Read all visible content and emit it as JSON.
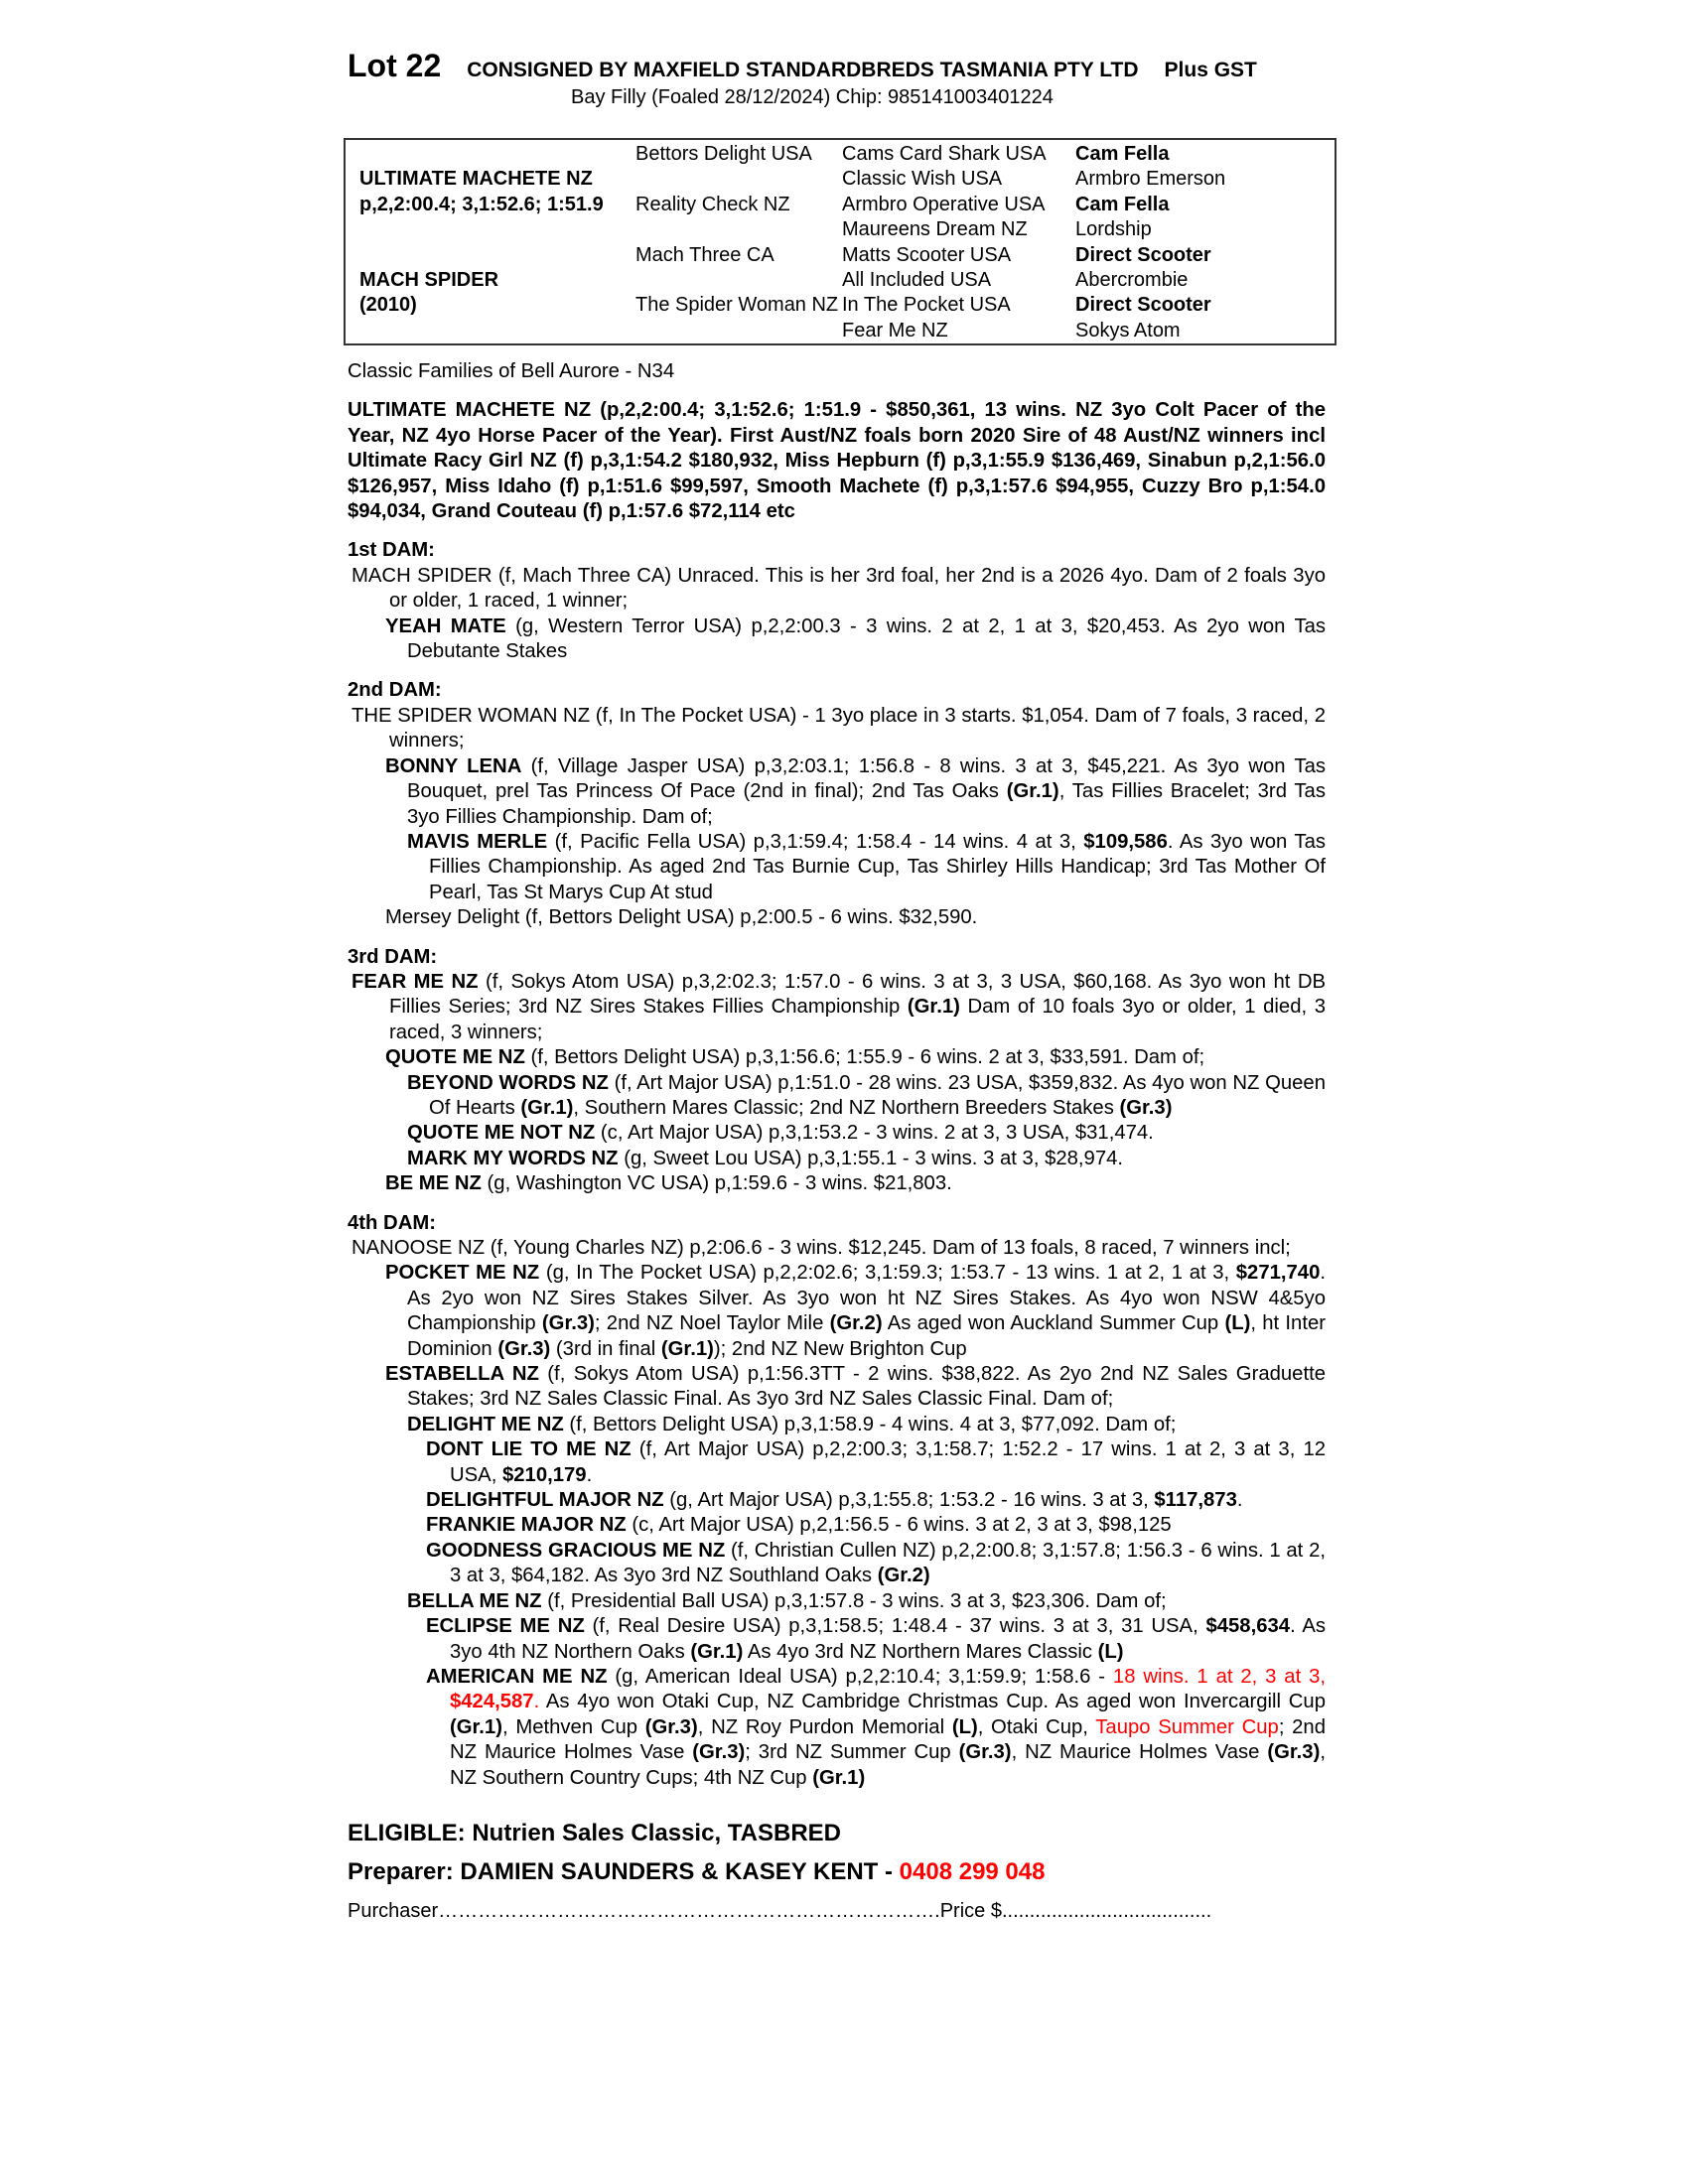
{
  "header": {
    "lot": "Lot 22",
    "consignor": "CONSIGNED BY MAXFIELD STANDARDBREDS TASMANIA PTY LTD",
    "gst": "Plus GST",
    "subtitle": "Bay Filly (Foaled 28/12/2024) Chip: 985141003401224"
  },
  "pedigree": {
    "col1": [
      {
        "row": 1,
        "t": "ULTIMATE MACHETE NZ",
        "b": true
      },
      {
        "row": 2,
        "t": "p,2,2:00.4; 3,1:52.6; 1:51.9",
        "b": true
      },
      {
        "row": 5,
        "t": "MACH SPIDER",
        "b": true
      },
      {
        "row": 6,
        "t": "(2010)",
        "b": true
      }
    ],
    "col2": [
      {
        "row": 0,
        "t": "Bettors Delight USA"
      },
      {
        "row": 2,
        "t": "Reality Check NZ"
      },
      {
        "row": 4,
        "t": "Mach Three CA"
      },
      {
        "row": 6,
        "t": "The Spider Woman NZ"
      }
    ],
    "col3": [
      {
        "row": 0,
        "t": "Cams Card Shark USA"
      },
      {
        "row": 1,
        "t": "Classic Wish USA"
      },
      {
        "row": 2,
        "t": "Armbro Operative USA"
      },
      {
        "row": 3,
        "t": "Maureens Dream NZ"
      },
      {
        "row": 4,
        "t": "Matts Scooter USA"
      },
      {
        "row": 5,
        "t": "All Included USA"
      },
      {
        "row": 6,
        "t": "In The Pocket USA"
      },
      {
        "row": 7,
        "t": "Fear Me NZ"
      }
    ],
    "col4": [
      {
        "row": 0,
        "t": "Cam Fella",
        "b": true
      },
      {
        "row": 1,
        "t": "Armbro Emerson"
      },
      {
        "row": 2,
        "t": "Cam Fella",
        "b": true
      },
      {
        "row": 3,
        "t": "Lordship"
      },
      {
        "row": 4,
        "t": "Direct Scooter",
        "b": true
      },
      {
        "row": 5,
        "t": "Abercrombie"
      },
      {
        "row": 6,
        "t": "Direct Scooter",
        "b": true
      },
      {
        "row": 7,
        "t": "Sokys Atom"
      }
    ]
  },
  "family": "Classic Families of Bell Aurore - N34",
  "sire": [
    {
      "t": "ULTIMATE MACHETE NZ (p,2,2:00.4; 3,1:52.6; 1:51.9 - $850,361, 13 wins. NZ 3yo Colt Pacer of the Year, NZ 4yo Horse Pacer of the Year). First Aust/NZ foals born 2020 Sire of 48 Aust/NZ winners incl Ultimate Racy Girl NZ (f) p,3,1:54.2 $180,932, Miss Hepburn (f) p,3,1:55.9 $136,469, Sinabun p,2,1:56.0 $126,957, Miss Idaho (f) p,1:51.6 $99,597, Smooth Machete (f) p,3,1:57.6 $94,955, Cuzzy Bro p,1:54.0 $94,034, Grand Couteau (f) p,1:57.6 $72,114 etc",
      "b": true
    }
  ],
  "sections": [
    {
      "title": "1st DAM:",
      "entries": [
        {
          "level": 0,
          "segs": [
            {
              "t": "MACH SPIDER (f, Mach Three CA) Unraced. This is her 3rd foal, her 2nd is a 2026 4yo. Dam of 2 foals 3yo or older, 1 raced, 1 winner;"
            }
          ]
        },
        {
          "level": 1,
          "segs": [
            {
              "t": "YEAH MATE",
              "b": true
            },
            {
              "t": " (g, Western Terror USA) p,2,2:00.3 - 3 wins. 2 at 2, 1 at 3, $20,453. As 2yo won Tas Debutante Stakes"
            }
          ]
        }
      ]
    },
    {
      "title": "2nd DAM:",
      "entries": [
        {
          "level": 0,
          "segs": [
            {
              "t": "THE SPIDER WOMAN NZ (f, In The Pocket USA) - 1 3yo place in 3 starts. $1,054. Dam of 7 foals, 3 raced, 2 winners;"
            }
          ]
        },
        {
          "level": 1,
          "segs": [
            {
              "t": "BONNY LENA",
              "b": true
            },
            {
              "t": " (f, Village Jasper USA) p,3,2:03.1; 1:56.8 - 8 wins. 3 at 3, $45,221. As 3yo won Tas Bouquet, prel Tas Princess Of Pace (2nd in final); 2nd Tas Oaks "
            },
            {
              "t": "(Gr.1)",
              "b": true
            },
            {
              "t": ", Tas Fillies Bracelet; 3rd Tas 3yo Fillies Championship. Dam of;"
            }
          ]
        },
        {
          "level": 2,
          "segs": [
            {
              "t": "MAVIS MERLE",
              "b": true
            },
            {
              "t": " (f, Pacific Fella USA) p,3,1:59.4; 1:58.4 - 14 wins. 4 at 3, "
            },
            {
              "t": "$109,586",
              "b": true
            },
            {
              "t": ". As 3yo won Tas Fillies Championship. As aged 2nd Tas Burnie Cup, Tas Shirley Hills Handicap; 3rd Tas Mother Of Pearl, Tas St Marys Cup At stud"
            }
          ]
        },
        {
          "level": 1,
          "segs": [
            {
              "t": "Mersey Delight (f, Bettors Delight USA) p,2:00.5 - 6 wins. $32,590."
            }
          ]
        }
      ]
    },
    {
      "title": "3rd DAM:",
      "entries": [
        {
          "level": 0,
          "segs": [
            {
              "t": "FEAR ME NZ",
              "b": true
            },
            {
              "t": " (f, Sokys Atom USA) p,3,2:02.3; 1:57.0 - 6 wins. 3 at 3, 3 USA, $60,168. As 3yo won ht DB Fillies Series; 3rd NZ Sires Stakes Fillies Championship "
            },
            {
              "t": "(Gr.1)",
              "b": true
            },
            {
              "t": " Dam of 10 foals 3yo or older, 1 died, 3 raced, 3 winners;"
            }
          ]
        },
        {
          "level": 1,
          "segs": [
            {
              "t": "QUOTE ME NZ",
              "b": true
            },
            {
              "t": " (f, Bettors Delight USA) p,3,1:56.6; 1:55.9 - 6 wins. 2 at 3, $33,591. Dam of;"
            }
          ]
        },
        {
          "level": 2,
          "segs": [
            {
              "t": "BEYOND WORDS NZ",
              "b": true
            },
            {
              "t": " (f, Art Major USA) p,1:51.0 - 28 wins. 23 USA, $359,832. As 4yo won NZ Queen Of Hearts "
            },
            {
              "t": "(Gr.1)",
              "b": true
            },
            {
              "t": ", Southern Mares Classic; 2nd NZ Northern Breeders Stakes "
            },
            {
              "t": "(Gr.3)",
              "b": true
            }
          ]
        },
        {
          "level": 2,
          "segs": [
            {
              "t": "QUOTE ME NOT NZ",
              "b": true
            },
            {
              "t": " (c, Art Major USA) p,3,1:53.2 - 3 wins. 2 at 3, 3 USA, $31,474."
            }
          ]
        },
        {
          "level": 2,
          "segs": [
            {
              "t": "MARK MY WORDS NZ",
              "b": true
            },
            {
              "t": " (g, Sweet Lou USA) p,3,1:55.1 - 3 wins. 3 at 3, $28,974."
            }
          ]
        },
        {
          "level": 1,
          "segs": [
            {
              "t": "BE ME NZ",
              "b": true
            },
            {
              "t": " (g, Washington VC USA) p,1:59.6 - 3 wins. $21,803."
            }
          ]
        }
      ]
    },
    {
      "title": "4th DAM:",
      "entries": [
        {
          "level": 0,
          "segs": [
            {
              "t": "NANOOSE NZ (f, Young Charles NZ) p,2:06.6 - 3 wins. $12,245. Dam of 13 foals, 8 raced, 7 winners incl;"
            }
          ]
        },
        {
          "level": 1,
          "segs": [
            {
              "t": "POCKET ME NZ",
              "b": true
            },
            {
              "t": " (g, In The Pocket USA) p,2,2:02.6; 3,1:59.3; 1:53.7 - 13 wins. 1 at 2, 1 at 3, "
            },
            {
              "t": "$271,740",
              "b": true
            },
            {
              "t": ". As 2yo won NZ Sires Stakes Silver. As 3yo won ht NZ Sires Stakes. As 4yo won NSW 4&5yo Championship "
            },
            {
              "t": "(Gr.3)",
              "b": true
            },
            {
              "t": "; 2nd NZ Noel Taylor Mile "
            },
            {
              "t": "(Gr.2)",
              "b": true
            },
            {
              "t": " As aged won Auckland Summer Cup "
            },
            {
              "t": "(L)",
              "b": true
            },
            {
              "t": ", ht Inter Dominion "
            },
            {
              "t": "(Gr.3)",
              "b": true
            },
            {
              "t": " (3rd in final "
            },
            {
              "t": "(Gr.1)",
              "b": true
            },
            {
              "t": "); 2nd NZ New Brighton Cup"
            }
          ]
        },
        {
          "level": 1,
          "segs": [
            {
              "t": "ESTABELLA NZ",
              "b": true
            },
            {
              "t": " (f, Sokys Atom USA) p,1:56.3TT - 2 wins. $38,822. As 2yo 2nd NZ Sales Graduette Stakes; 3rd NZ Sales Classic Final. As 3yo 3rd NZ Sales Classic Final. Dam of;"
            }
          ]
        },
        {
          "level": 2,
          "segs": [
            {
              "t": "DELIGHT ME NZ",
              "b": true
            },
            {
              "t": " (f, Bettors Delight USA) p,3,1:58.9 - 4 wins. 4 at 3, $77,092. Dam of;"
            }
          ]
        },
        {
          "level": 3,
          "segs": [
            {
              "t": "DONT LIE TO ME NZ",
              "b": true
            },
            {
              "t": " (f, Art Major USA) p,2,2:00.3; 3,1:58.7; 1:52.2 - 17 wins. 1 at 2, 3 at 3, 12 USA, "
            },
            {
              "t": "$210,179",
              "b": true
            },
            {
              "t": "."
            }
          ]
        },
        {
          "level": 3,
          "segs": [
            {
              "t": "DELIGHTFUL MAJOR NZ",
              "b": true
            },
            {
              "t": " (g, Art Major USA) p,3,1:55.8; 1:53.2 - 16 wins. 3 at 3, "
            },
            {
              "t": "$117,873",
              "b": true
            },
            {
              "t": "."
            }
          ]
        },
        {
          "level": 3,
          "segs": [
            {
              "t": "FRANKIE MAJOR NZ",
              "b": true
            },
            {
              "t": " (c, Art Major USA) p,2,1:56.5 - 6 wins. 3 at 2, 3 at 3, $98,125"
            }
          ]
        },
        {
          "level": 3,
          "segs": [
            {
              "t": "GOODNESS GRACIOUS ME NZ",
              "b": true
            },
            {
              "t": " (f, Christian Cullen NZ) p,2,2:00.8; 3,1:57.8; 1:56.3 - 6 wins. 1 at 2, 3 at 3, $64,182. As 3yo 3rd NZ Southland Oaks "
            },
            {
              "t": "(Gr.2)",
              "b": true
            }
          ]
        },
        {
          "level": 2,
          "segs": [
            {
              "t": "BELLA ME NZ",
              "b": true
            },
            {
              "t": " (f, Presidential Ball USA) p,3,1:57.8 - 3 wins. 3 at 3, $23,306. Dam of;"
            }
          ]
        },
        {
          "level": 3,
          "segs": [
            {
              "t": "ECLIPSE ME NZ",
              "b": true
            },
            {
              "t": " (f, Real Desire USA) p,3,1:58.5; 1:48.4 - 37 wins. 3 at 3, 31 USA, "
            },
            {
              "t": "$458,634",
              "b": true
            },
            {
              "t": ". As 3yo 4th NZ Northern Oaks "
            },
            {
              "t": "(Gr.1)",
              "b": true
            },
            {
              "t": " As 4yo 3rd NZ Northern Mares Classic "
            },
            {
              "t": "(L)",
              "b": true
            }
          ]
        },
        {
          "level": 3,
          "segs": [
            {
              "t": "AMERICAN ME NZ",
              "b": true
            },
            {
              "t": " (g, American Ideal USA) p,2,2:10.4; 3,1:59.9; 1:58.6 - "
            },
            {
              "t": "18 wins. 1 at 2, 3 at 3, ",
              "red": true
            },
            {
              "t": "$424,587",
              "b": true,
              "red": true
            },
            {
              "t": ".",
              "red": true
            },
            {
              "t": " As 4yo won Otaki Cup, NZ Cambridge Christmas Cup. As aged won Invercargill Cup "
            },
            {
              "t": "(Gr.1)",
              "b": true
            },
            {
              "t": ", Methven Cup "
            },
            {
              "t": "(Gr.3)",
              "b": true
            },
            {
              "t": ", NZ Roy Purdon Memorial "
            },
            {
              "t": "(L)",
              "b": true
            },
            {
              "t": ", Otaki Cup, "
            },
            {
              "t": "Taupo Summer Cup",
              "red": true
            },
            {
              "t": "; 2nd NZ Maurice Holmes Vase "
            },
            {
              "t": "(Gr.3)",
              "b": true
            },
            {
              "t": "; 3rd NZ Summer Cup "
            },
            {
              "t": "(Gr.3)",
              "b": true
            },
            {
              "t": ", NZ Maurice Holmes Vase "
            },
            {
              "t": "(Gr.3)",
              "b": true
            },
            {
              "t": ", NZ Southern Country Cups; 4th NZ Cup "
            },
            {
              "t": "(Gr.1)",
              "b": true
            }
          ]
        }
      ]
    }
  ],
  "footer": {
    "eligible": "ELIGIBLE: Nutrien Sales Classic, TASBRED",
    "preparer": "Preparer: DAMIEN SAUNDERS & KASEY KENT - ",
    "phone": "0408 299 048",
    "purchaser_label": "Purchaser",
    "purchaser_dots": "………………………………………………………………….",
    "price_label": "Price $",
    "price_dots": "......................................"
  },
  "colors": {
    "highlight": "#ff0000",
    "text": "#000000",
    "border": "#333333"
  }
}
